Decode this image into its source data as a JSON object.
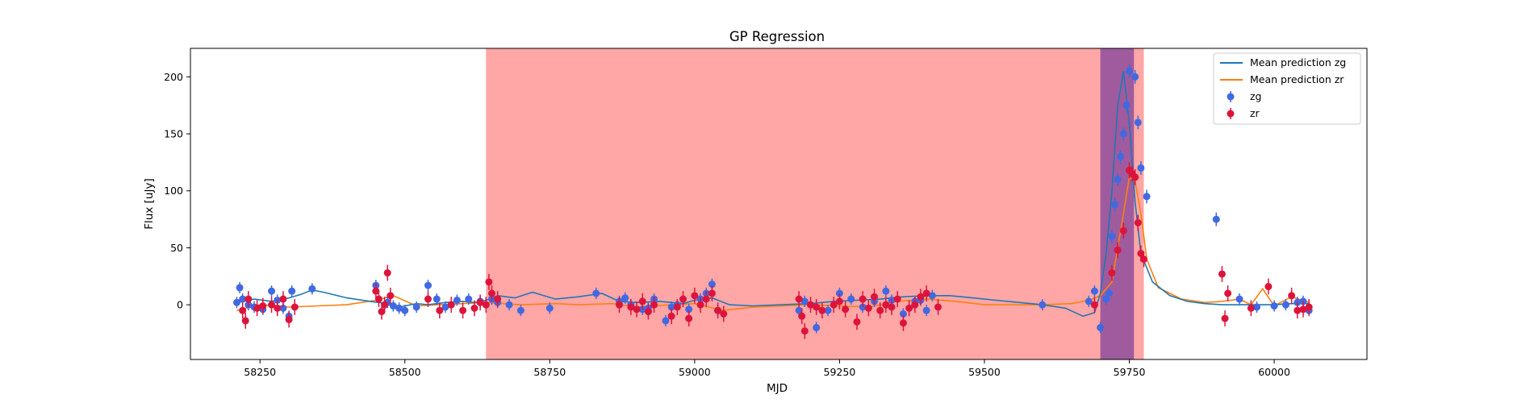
{
  "chart_data": {
    "type": "scatter",
    "title": "GP Regression",
    "xlabel": "MJD",
    "ylabel": "Flux [uJy]",
    "xlim": [
      58130,
      60160
    ],
    "ylim": [
      -48,
      225
    ],
    "xticks": [
      58250,
      58500,
      58750,
      59000,
      59250,
      59500,
      59750,
      60000
    ],
    "yticks": [
      0,
      50,
      100,
      150,
      200
    ],
    "grid": false,
    "legend_position": "top-right",
    "shaded_regions": [
      {
        "x0": 58640,
        "x1": 59775,
        "color": "#ff6666",
        "opacity": 0.58
      },
      {
        "x0": 59700,
        "x1": 59758,
        "color": "#7a3f9a",
        "opacity": 0.72
      }
    ],
    "series": [
      {
        "name": "Mean prediction zg",
        "kind": "line",
        "color": "#1f77b4",
        "x": [
          58210,
          58240,
          58270,
          58300,
          58320,
          58340,
          58360,
          58400,
          58440,
          58470,
          58490,
          58520,
          58540,
          58570,
          58600,
          58620,
          58640,
          58660,
          58690,
          58720,
          58760,
          58800,
          58840,
          58870,
          58900,
          58940,
          58980,
          59000,
          59030,
          59060,
          59100,
          59150,
          59200,
          59240,
          59280,
          59320,
          59360,
          59400,
          59440,
          59480,
          59520,
          59560,
          59600,
          59640,
          59670,
          59690,
          59700,
          59710,
          59720,
          59730,
          59740,
          59750,
          59760,
          59770,
          59790,
          59820,
          59850,
          59880,
          59910,
          59940,
          59970,
          60000,
          60030,
          60060
        ],
        "y": [
          2,
          5,
          3,
          6,
          9,
          13,
          11,
          6,
          3,
          1,
          -2,
          1,
          0,
          2,
          3,
          2,
          4,
          8,
          6,
          11,
          5,
          7,
          10,
          3,
          2,
          3,
          1,
          4,
          6,
          0,
          -1,
          0,
          1,
          3,
          4,
          5,
          7,
          8,
          8,
          6,
          4,
          2,
          0,
          -3,
          -10,
          -7,
          10,
          45,
          100,
          175,
          205,
          160,
          90,
          45,
          20,
          8,
          3,
          1,
          0,
          0,
          0,
          0,
          1,
          1
        ]
      },
      {
        "name": "Mean prediction zr",
        "kind": "line",
        "color": "#ff7f0e",
        "x": [
          58210,
          58250,
          58300,
          58350,
          58400,
          58450,
          58480,
          58520,
          58560,
          58600,
          58640,
          58700,
          58760,
          58800,
          58860,
          58900,
          58960,
          59000,
          59050,
          59100,
          59150,
          59200,
          59250,
          59300,
          59350,
          59400,
          59450,
          59500,
          59550,
          59600,
          59650,
          59680,
          59700,
          59720,
          59740,
          59750,
          59760,
          59770,
          59780,
          59800,
          59840,
          59880,
          59910,
          59940,
          59960,
          59980,
          60000,
          60030,
          60060
        ],
        "y": [
          -5,
          0,
          -2,
          -1,
          0,
          4,
          8,
          -1,
          0,
          1,
          2,
          0,
          1,
          0,
          1,
          -2,
          0,
          1,
          -5,
          -2,
          -1,
          0,
          -1,
          -2,
          3,
          5,
          3,
          0,
          0,
          0,
          1,
          4,
          8,
          20,
          80,
          112,
          108,
          80,
          40,
          15,
          5,
          2,
          3,
          5,
          0,
          14,
          -1,
          7,
          2
        ]
      },
      {
        "name": "zg",
        "kind": "errorbar",
        "color": "#4169e1",
        "x": [
          58210,
          58215,
          58220,
          58230,
          58240,
          58255,
          58270,
          58280,
          58290,
          58300,
          58305,
          58340,
          58450,
          58470,
          58480,
          58490,
          58500,
          58520,
          58540,
          58555,
          58570,
          58590,
          58610,
          58630,
          58650,
          58660,
          58680,
          58700,
          58750,
          58830,
          58870,
          58880,
          58890,
          58910,
          58920,
          58930,
          58950,
          58960,
          58970,
          58990,
          59010,
          59020,
          59030,
          59040,
          59180,
          59190,
          59210,
          59230,
          59250,
          59270,
          59290,
          59310,
          59330,
          59340,
          59360,
          59380,
          59390,
          59400,
          59410,
          59600,
          59680,
          59690,
          59700,
          59710,
          59715,
          59720,
          59725,
          59730,
          59735,
          59740,
          59745,
          59750,
          59760,
          59765,
          59770,
          59780,
          59900,
          59940,
          59970,
          60000,
          60020,
          60040,
          60050,
          60060
        ],
        "y": [
          2,
          15,
          5,
          0,
          -2,
          -4,
          12,
          4,
          -3,
          -10,
          12,
          14,
          17,
          2,
          -1,
          -3,
          -5,
          -2,
          17,
          5,
          -2,
          4,
          5,
          3,
          5,
          2,
          0,
          -5,
          -3,
          10,
          3,
          6,
          0,
          -4,
          -3,
          5,
          -14,
          -2,
          0,
          -4,
          5,
          10,
          18,
          -5,
          -5,
          3,
          -20,
          -5,
          10,
          5,
          -2,
          3,
          12,
          4,
          -8,
          3,
          4,
          -5,
          8,
          0,
          3,
          12,
          -20,
          5,
          10,
          60,
          88,
          110,
          130,
          150,
          175,
          205,
          200,
          160,
          120,
          95,
          75,
          5,
          -2,
          -1,
          0,
          2,
          3,
          -5
        ]
      },
      {
        "name": "zr",
        "kind": "errorbar",
        "color": "#dc143c",
        "x": [
          58220,
          58225,
          58230,
          58245,
          58255,
          58270,
          58280,
          58290,
          58300,
          58310,
          58450,
          58455,
          58460,
          58465,
          58470,
          58475,
          58540,
          58560,
          58580,
          58600,
          58620,
          58630,
          58640,
          58645,
          58650,
          58660,
          58870,
          58890,
          58900,
          58910,
          58920,
          58930,
          58960,
          58970,
          58980,
          58990,
          59000,
          59010,
          59020,
          59030,
          59040,
          59050,
          59180,
          59185,
          59190,
          59200,
          59210,
          59220,
          59240,
          59250,
          59260,
          59280,
          59290,
          59300,
          59310,
          59320,
          59330,
          59340,
          59350,
          59360,
          59370,
          59380,
          59390,
          59400,
          59420,
          59690,
          59720,
          59730,
          59740,
          59750,
          59755,
          59760,
          59765,
          59770,
          59775,
          59910,
          59915,
          59920,
          59960,
          59990,
          60030,
          60040,
          60050,
          60060
        ],
        "y": [
          -5,
          -14,
          5,
          -3,
          -1,
          0,
          -3,
          5,
          -13,
          -2,
          12,
          5,
          -6,
          0,
          28,
          8,
          5,
          -5,
          0,
          -5,
          -3,
          2,
          0,
          20,
          10,
          5,
          0,
          -2,
          -4,
          3,
          -6,
          0,
          -10,
          -2,
          5,
          -12,
          8,
          0,
          5,
          10,
          -5,
          -8,
          5,
          -10,
          -23,
          0,
          -2,
          -5,
          0,
          3,
          -4,
          -15,
          5,
          -3,
          7,
          -5,
          0,
          -2,
          5,
          -16,
          -3,
          0,
          7,
          10,
          -2,
          0,
          28,
          48,
          65,
          118,
          115,
          112,
          72,
          45,
          40,
          27,
          -12,
          10,
          -3,
          16,
          8,
          -5,
          -4,
          -2
        ],
        "err": 7
      }
    ]
  }
}
